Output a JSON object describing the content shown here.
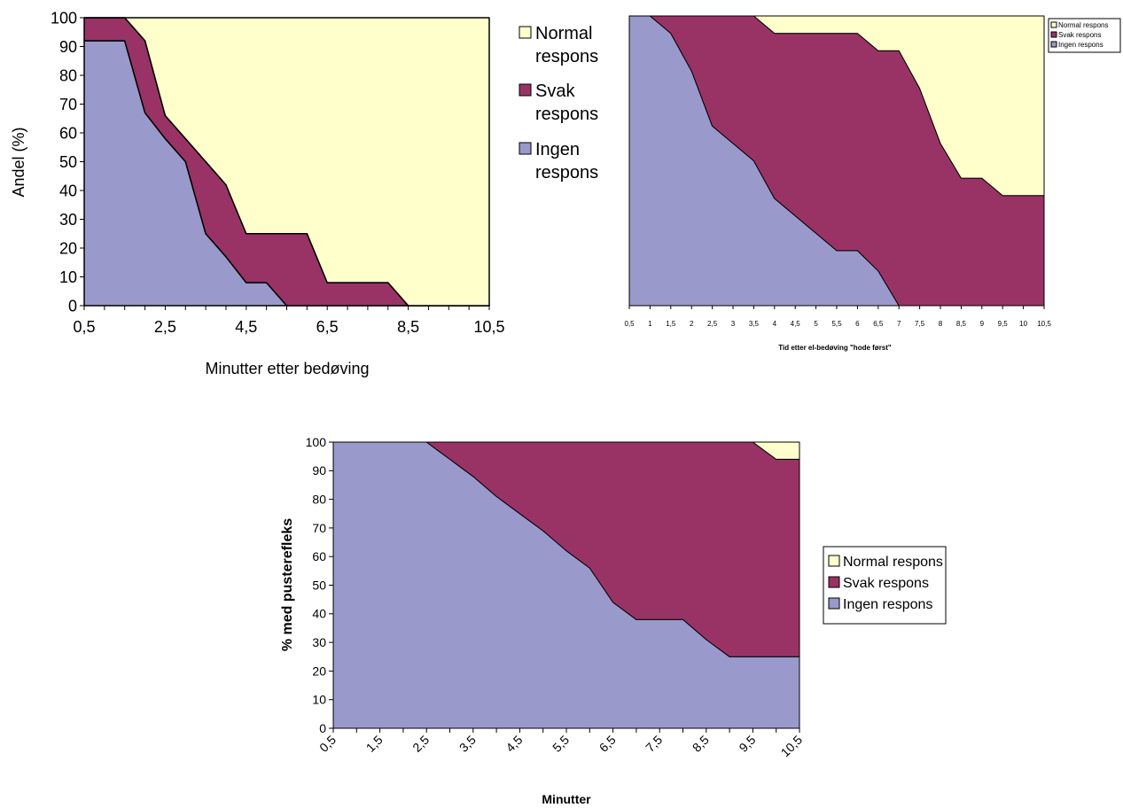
{
  "colors": {
    "normal": "#FFFFCC",
    "svak": "#993366",
    "ingen": "#9999CC",
    "axis": "#000000"
  },
  "chart_data": [
    {
      "type": "area",
      "stacked": true,
      "title": "",
      "xlabel": "Minutter etter bedøving",
      "ylabel": "Andel (%)",
      "ylim": [
        0,
        100
      ],
      "yticks": [
        "0",
        "10",
        "20",
        "30",
        "40",
        "50",
        "60",
        "70",
        "80",
        "90",
        "100"
      ],
      "x": [
        0.5,
        1,
        1.5,
        2,
        2.5,
        3,
        3.5,
        4,
        4.5,
        5,
        5.5,
        6,
        6.5,
        7,
        7.5,
        8,
        8.5,
        9,
        9.5,
        10,
        10.5
      ],
      "xtick_labels": [
        "0,5",
        "2,5",
        "4,5",
        "6,5",
        "8,5",
        "10,5"
      ],
      "legend_position": "right",
      "grid": false,
      "series": [
        {
          "name": "Ingen respons",
          "values": [
            92,
            92,
            92,
            67,
            58,
            50,
            25,
            17,
            8,
            8,
            0,
            0,
            0,
            0,
            0,
            0,
            0,
            0,
            0,
            0,
            0
          ]
        },
        {
          "name": "Svak respons",
          "values": [
            8,
            8,
            8,
            25,
            8,
            8,
            25,
            25,
            17,
            17,
            25,
            25,
            8,
            8,
            8,
            8,
            0,
            0,
            0,
            0,
            0
          ]
        },
        {
          "name": "Normal respons",
          "values": [
            0,
            0,
            0,
            8,
            34,
            42,
            50,
            58,
            75,
            75,
            75,
            75,
            92,
            92,
            92,
            92,
            100,
            100,
            100,
            100,
            100
          ]
        }
      ],
      "legend_labels": [
        {
          "line1": "Normal",
          "line2": "respons"
        },
        {
          "line1": "Svak",
          "line2": "respons"
        },
        {
          "line1": "Ingen",
          "line2": "respons"
        }
      ]
    },
    {
      "type": "area",
      "stacked": true,
      "title": "",
      "xlabel": "Tid etter el-bedøving \"hode først\"",
      "ylabel": "",
      "ylim": [
        0,
        100
      ],
      "x": [
        0.5,
        1,
        1.5,
        2,
        2.5,
        3,
        3.5,
        4,
        4.5,
        5,
        5.5,
        6,
        6.5,
        7,
        7.5,
        8,
        8.5,
        9,
        9.5,
        10,
        10.5
      ],
      "xtick_labels": [
        "0,5",
        "1",
        "1,5",
        "2",
        "2,5",
        "3",
        "3,5",
        "4",
        "4,5",
        "5",
        "5,5",
        "6",
        "6,5",
        "7",
        "7,5",
        "8",
        "8,5",
        "9",
        "9,5",
        "10",
        "10,5"
      ],
      "legend_position": "top-right",
      "grid": false,
      "series": [
        {
          "name": "Ingen respons",
          "values": [
            100,
            100,
            94,
            81,
            62,
            56,
            50,
            37,
            31,
            25,
            19,
            19,
            12,
            0,
            0,
            0,
            0,
            0,
            0,
            0,
            0
          ]
        },
        {
          "name": "Svak respons",
          "values": [
            0,
            0,
            6,
            19,
            38,
            44,
            50,
            57,
            63,
            69,
            75,
            75,
            76,
            88,
            75,
            56,
            44,
            44,
            38,
            38,
            38
          ]
        },
        {
          "name": "Normal respons",
          "values": [
            0,
            0,
            0,
            0,
            0,
            0,
            0,
            6,
            6,
            6,
            6,
            6,
            12,
            12,
            25,
            44,
            56,
            56,
            62,
            62,
            62
          ]
        }
      ],
      "legend_labels": [
        "Normal respons",
        "Svak respons",
        "Ingen respons"
      ]
    },
    {
      "type": "area",
      "stacked": true,
      "title": "",
      "xlabel": "Minutter",
      "ylabel": "% med pusterefleks",
      "ylim": [
        0,
        100
      ],
      "yticks": [
        "0",
        "10",
        "20",
        "30",
        "40",
        "50",
        "60",
        "70",
        "80",
        "90",
        "100"
      ],
      "x": [
        0.5,
        1,
        1.5,
        2,
        2.5,
        3,
        3.5,
        4,
        4.5,
        5,
        5.5,
        6,
        6.5,
        7,
        7.5,
        8,
        8.5,
        9,
        9.5,
        10,
        10.5
      ],
      "xtick_labels": [
        "0,5",
        "1,5",
        "2,5",
        "3,5",
        "4,5",
        "5,5",
        "6,5",
        "7,5",
        "8,5",
        "9,5",
        "10,5"
      ],
      "legend_position": "right",
      "grid": false,
      "series": [
        {
          "name": "Ingen respons",
          "values": [
            100,
            100,
            100,
            100,
            100,
            94,
            88,
            81,
            75,
            69,
            62,
            56,
            44,
            38,
            38,
            38,
            31,
            25,
            25,
            25,
            25
          ]
        },
        {
          "name": "Svak respons",
          "values": [
            0,
            0,
            0,
            0,
            0,
            6,
            12,
            19,
            25,
            31,
            38,
            44,
            56,
            62,
            62,
            62,
            69,
            75,
            75,
            69,
            69
          ]
        },
        {
          "name": "Normal respons",
          "values": [
            0,
            0,
            0,
            0,
            0,
            0,
            0,
            0,
            0,
            0,
            0,
            0,
            0,
            0,
            0,
            0,
            0,
            0,
            0,
            6,
            6
          ]
        }
      ],
      "legend_labels": [
        "Normal respons",
        "Svak respons",
        "Ingen respons"
      ]
    }
  ]
}
